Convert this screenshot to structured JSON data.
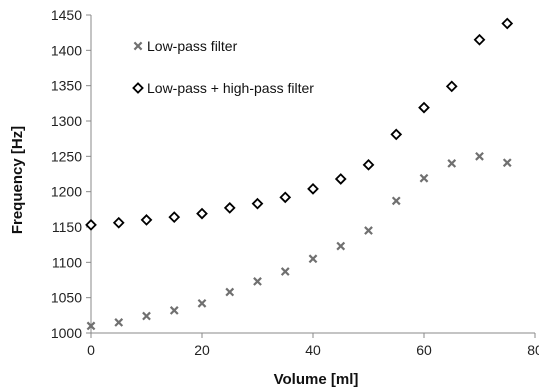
{
  "chart_data": {
    "type": "scatter",
    "title": "",
    "xlabel": "Volume [ml]",
    "ylabel": "Frequency [Hz]",
    "xlim": [
      0,
      80
    ],
    "ylim": [
      1000,
      1450
    ],
    "xticks": [
      "0",
      "20",
      "40",
      "60",
      "80"
    ],
    "yticks": [
      "1000",
      "1050",
      "1100",
      "1150",
      "1200",
      "1250",
      "1300",
      "1350",
      "1400",
      "1450"
    ],
    "grid": false,
    "legend_position": "top-left",
    "series": [
      {
        "name": "Low-pass filter",
        "marker": "x",
        "color": "#707070",
        "x": [
          0,
          5,
          10,
          15,
          20,
          25,
          30,
          35,
          40,
          45,
          50,
          55,
          60,
          65,
          70,
          75
        ],
        "y": [
          1010,
          1015,
          1024,
          1032,
          1042,
          1058,
          1073,
          1087,
          1105,
          1123,
          1145,
          1187,
          1219,
          1240,
          1250,
          1241
        ]
      },
      {
        "name": "Low-pass + high-pass filter",
        "marker": "diamond",
        "color": "#000000",
        "x": [
          0,
          5,
          10,
          15,
          20,
          25,
          30,
          35,
          40,
          45,
          50,
          55,
          60,
          65,
          70,
          75
        ],
        "y": [
          1153,
          1156,
          1160,
          1164,
          1169,
          1177,
          1183,
          1192,
          1204,
          1218,
          1238,
          1281,
          1319,
          1349,
          1415,
          1438
        ]
      }
    ]
  }
}
